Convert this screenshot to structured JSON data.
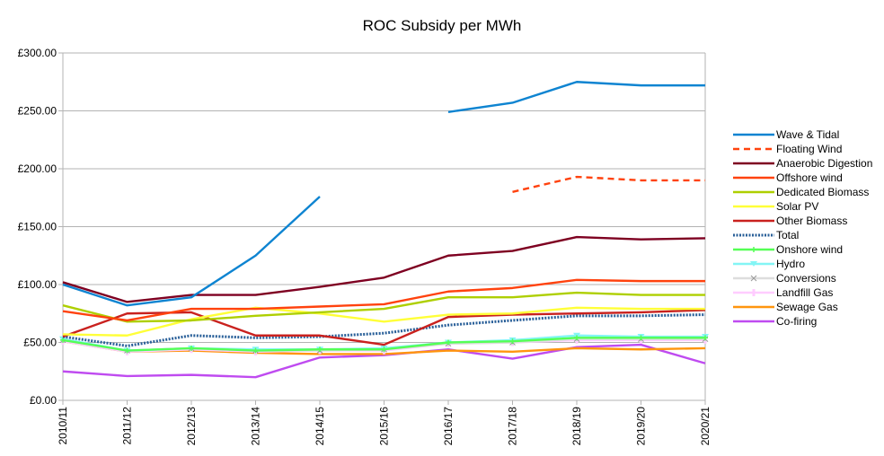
{
  "chart_data": {
    "type": "line",
    "title": "ROC Subsidy per MWh",
    "xlabel": "",
    "ylabel": "",
    "ylim": [
      0,
      300
    ],
    "yticks": [
      0,
      50,
      100,
      150,
      200,
      250,
      300
    ],
    "ytick_labels": [
      "£0.00",
      "£50.00",
      "£100.00",
      "£150.00",
      "£200.00",
      "£250.00",
      "£300.00"
    ],
    "grid": true,
    "legend_position": "right",
    "categories": [
      "2010/11",
      "2011/12",
      "2012/13",
      "2013/14",
      "2014/15",
      "2015/16",
      "2016/17",
      "2017/18",
      "2018/19",
      "2019/20",
      "2020/21"
    ],
    "series": [
      {
        "name": "Wave & Tidal",
        "color": "#0e84d1",
        "style": "solid",
        "marker": "none",
        "values": [
          100,
          82,
          89,
          125,
          176,
          null,
          249,
          257,
          275,
          272,
          272
        ]
      },
      {
        "name": "Floating Wind",
        "color": "#ff420e",
        "style": "dashed",
        "marker": "none",
        "values": [
          null,
          null,
          null,
          null,
          null,
          null,
          null,
          180,
          193,
          190,
          190
        ]
      },
      {
        "name": "Anaerobic Digestion",
        "color": "#7e0021",
        "style": "solid",
        "marker": "none",
        "values": [
          102,
          85,
          91,
          91,
          98,
          106,
          125,
          129,
          141,
          139,
          140
        ]
      },
      {
        "name": "Offshore wind",
        "color": "#ff420e",
        "style": "solid",
        "marker": "none",
        "values": [
          77,
          69,
          79,
          79,
          81,
          83,
          94,
          97,
          104,
          103,
          103
        ]
      },
      {
        "name": "Dedicated Biomass",
        "color": "#aecf00",
        "style": "solid",
        "marker": "none",
        "values": [
          82,
          68,
          69,
          73,
          76,
          79,
          89,
          89,
          93,
          91,
          91
        ]
      },
      {
        "name": "Solar PV",
        "color": "#ffff38",
        "style": "solid",
        "marker": "none",
        "values": [
          57,
          56,
          70,
          80,
          75,
          68,
          74,
          75,
          80,
          79,
          79
        ]
      },
      {
        "name": "Other Biomass",
        "color": "#c9211e",
        "style": "solid",
        "marker": "none",
        "values": [
          55,
          75,
          76,
          56,
          56,
          48,
          72,
          74,
          75,
          76,
          78
        ]
      },
      {
        "name": "Total",
        "color": "#2a6099",
        "style": "dotted",
        "marker": "none",
        "values": [
          55,
          47,
          56,
          54,
          55,
          58,
          65,
          69,
          73,
          73,
          74
        ]
      },
      {
        "name": "Onshore wind",
        "color": "#55ff55",
        "style": "solid",
        "marker": "plus",
        "values": [
          52,
          43,
          45,
          43,
          44,
          44,
          50,
          51,
          54,
          54,
          54
        ]
      },
      {
        "name": "Hydro",
        "color": "#83f5f5",
        "style": "solid",
        "marker": "triangle-down",
        "values": [
          53,
          43,
          45,
          44,
          44,
          45,
          50,
          52,
          56,
          55,
          55
        ]
      },
      {
        "name": "Conversions",
        "color": "#dddddd",
        "style": "solid",
        "marker": "x",
        "values": [
          52,
          43,
          45,
          43,
          43,
          44,
          49,
          50,
          53,
          53,
          53
        ]
      },
      {
        "name": "Landfill Gas",
        "color": "#ffccff",
        "style": "solid",
        "marker": "bar",
        "values": [
          51,
          42,
          44,
          42,
          43,
          43,
          49,
          50,
          52,
          52,
          52
        ]
      },
      {
        "name": "Sewage Gas",
        "color": "#ff950e",
        "style": "solid",
        "marker": "none",
        "values": [
          51,
          42,
          43,
          41,
          40,
          40,
          43,
          42,
          45,
          44,
          45
        ]
      },
      {
        "name": "Co-firing",
        "color": "#bf4bf0",
        "style": "solid",
        "marker": "none",
        "values": [
          25,
          21,
          22,
          20,
          37,
          39,
          44,
          36,
          46,
          48,
          32
        ]
      }
    ]
  }
}
